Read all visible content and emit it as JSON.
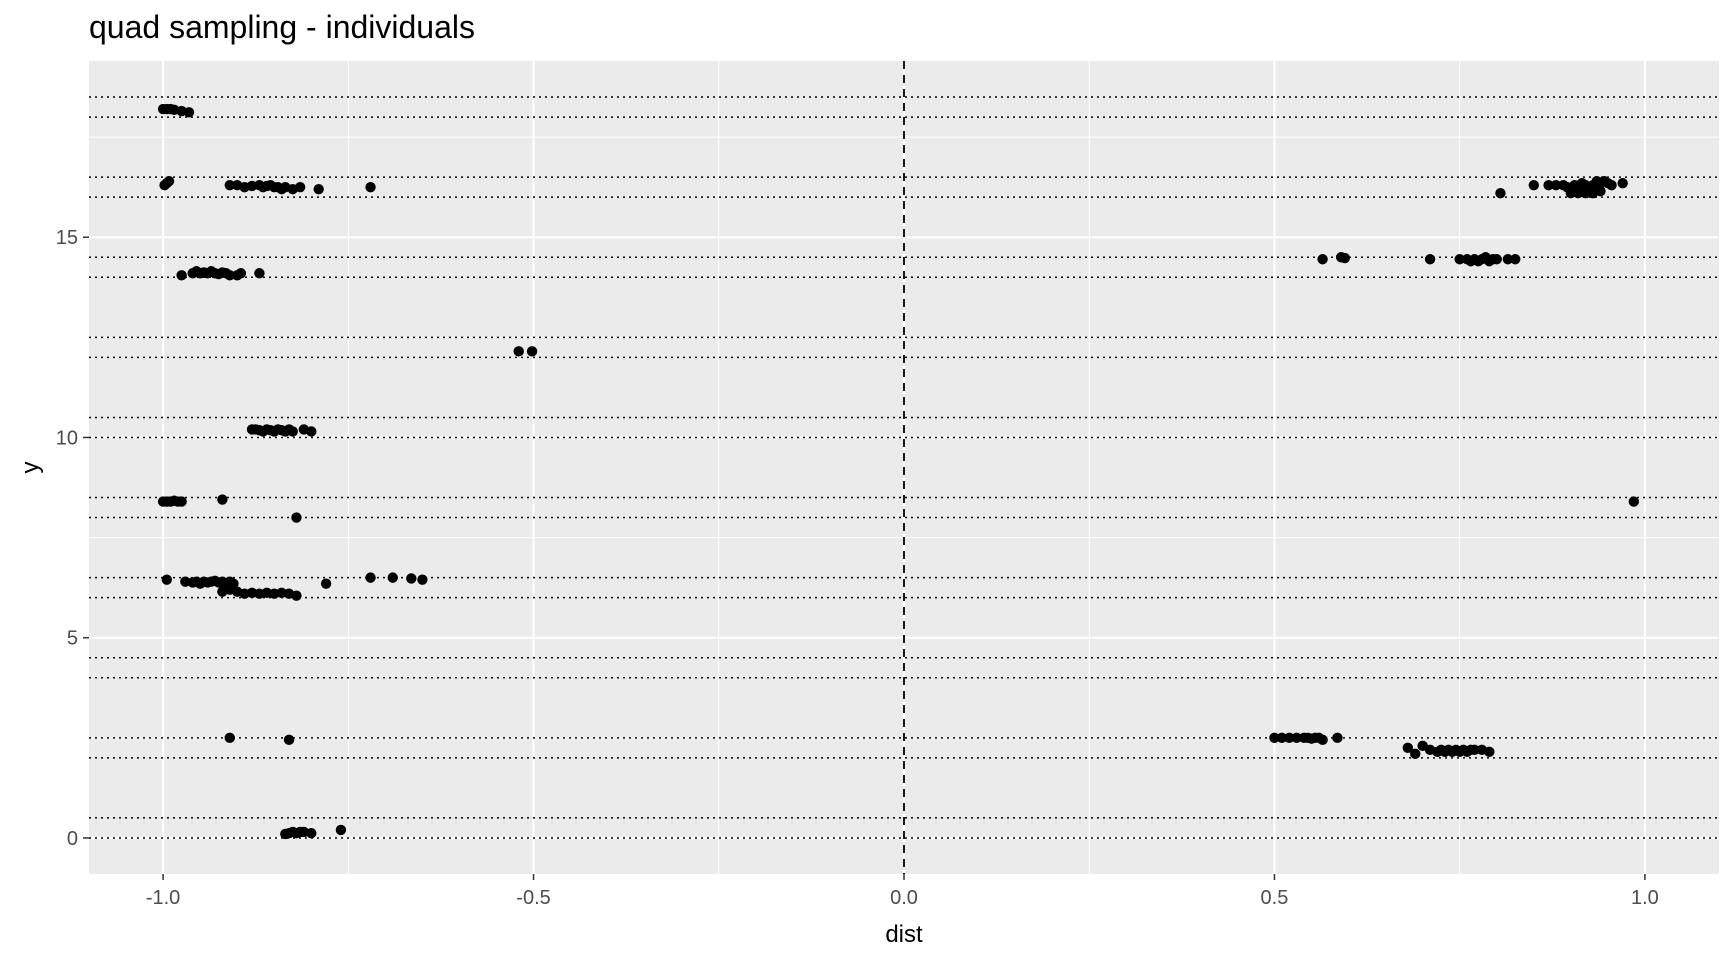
{
  "chart_data": {
    "type": "scatter",
    "title": "quad sampling - individuals",
    "xlabel": "dist",
    "ylabel": "y",
    "xlim": [
      -1.1,
      1.1
    ],
    "ylim": [
      -0.9,
      19.4
    ],
    "x_ticks": [
      -1.0,
      -0.5,
      0.0,
      0.5,
      1.0
    ],
    "x_tick_labels": [
      "-1.0",
      "-0.5",
      "0.0",
      "0.5",
      "1.0"
    ],
    "y_ticks": [
      0,
      5,
      10,
      15
    ],
    "y_tick_labels": [
      "0",
      "5",
      "10",
      "15"
    ],
    "grid": true,
    "background_color": "#ebebeb",
    "gridline_color": "#ffffff",
    "point_color": "#000000",
    "reference_lines": {
      "vertical_dashed_x": [
        0.0
      ],
      "horizontal_dotted_y": [
        0,
        0.5,
        2,
        2.5,
        4,
        4.5,
        6,
        6.5,
        8,
        8.5,
        10,
        10.5,
        12,
        12.5,
        14,
        14.5,
        16,
        16.5,
        18,
        18.5
      ]
    },
    "points": [
      {
        "x": -1.0,
        "y": 18.2
      },
      {
        "x": -0.995,
        "y": 18.2
      },
      {
        "x": -0.99,
        "y": 18.2
      },
      {
        "x": -0.985,
        "y": 18.18
      },
      {
        "x": -0.975,
        "y": 18.15
      },
      {
        "x": -0.965,
        "y": 18.12
      },
      {
        "x": -0.998,
        "y": 16.3
      },
      {
        "x": -0.995,
        "y": 16.35
      },
      {
        "x": -0.992,
        "y": 16.4
      },
      {
        "x": -0.91,
        "y": 16.3
      },
      {
        "x": -0.9,
        "y": 16.3
      },
      {
        "x": -0.89,
        "y": 16.25
      },
      {
        "x": -0.88,
        "y": 16.28
      },
      {
        "x": -0.87,
        "y": 16.3
      },
      {
        "x": -0.865,
        "y": 16.25
      },
      {
        "x": -0.86,
        "y": 16.28
      },
      {
        "x": -0.855,
        "y": 16.3
      },
      {
        "x": -0.85,
        "y": 16.25
      },
      {
        "x": -0.845,
        "y": 16.25
      },
      {
        "x": -0.84,
        "y": 16.2
      },
      {
        "x": -0.835,
        "y": 16.25
      },
      {
        "x": -0.825,
        "y": 16.2
      },
      {
        "x": -0.815,
        "y": 16.25
      },
      {
        "x": -0.79,
        "y": 16.2
      },
      {
        "x": -0.72,
        "y": 16.25
      },
      {
        "x": -0.975,
        "y": 14.05
      },
      {
        "x": -0.96,
        "y": 14.1
      },
      {
        "x": -0.955,
        "y": 14.15
      },
      {
        "x": -0.95,
        "y": 14.1
      },
      {
        "x": -0.945,
        "y": 14.12
      },
      {
        "x": -0.94,
        "y": 14.1
      },
      {
        "x": -0.935,
        "y": 14.15
      },
      {
        "x": -0.93,
        "y": 14.1
      },
      {
        "x": -0.925,
        "y": 14.08
      },
      {
        "x": -0.92,
        "y": 14.12
      },
      {
        "x": -0.915,
        "y": 14.1
      },
      {
        "x": -0.91,
        "y": 14.05
      },
      {
        "x": -0.9,
        "y": 14.05
      },
      {
        "x": -0.895,
        "y": 14.1
      },
      {
        "x": -0.87,
        "y": 14.1
      },
      {
        "x": -0.52,
        "y": 12.15
      },
      {
        "x": -0.502,
        "y": 12.15
      },
      {
        "x": -0.88,
        "y": 10.2
      },
      {
        "x": -0.875,
        "y": 10.2
      },
      {
        "x": -0.87,
        "y": 10.18
      },
      {
        "x": -0.865,
        "y": 10.15
      },
      {
        "x": -0.86,
        "y": 10.2
      },
      {
        "x": -0.855,
        "y": 10.18
      },
      {
        "x": -0.85,
        "y": 10.15
      },
      {
        "x": -0.845,
        "y": 10.2
      },
      {
        "x": -0.84,
        "y": 10.18
      },
      {
        "x": -0.835,
        "y": 10.15
      },
      {
        "x": -0.83,
        "y": 10.2
      },
      {
        "x": -0.825,
        "y": 10.15
      },
      {
        "x": -0.81,
        "y": 10.2
      },
      {
        "x": -0.8,
        "y": 10.15
      },
      {
        "x": -1.0,
        "y": 8.4
      },
      {
        "x": -0.995,
        "y": 8.4
      },
      {
        "x": -0.99,
        "y": 8.4
      },
      {
        "x": -0.985,
        "y": 8.42
      },
      {
        "x": -0.98,
        "y": 8.4
      },
      {
        "x": -0.975,
        "y": 8.4
      },
      {
        "x": -0.92,
        "y": 8.45
      },
      {
        "x": -0.82,
        "y": 8.0
      },
      {
        "x": -0.995,
        "y": 6.45
      },
      {
        "x": -0.97,
        "y": 6.4
      },
      {
        "x": -0.96,
        "y": 6.38
      },
      {
        "x": -0.955,
        "y": 6.4
      },
      {
        "x": -0.95,
        "y": 6.35
      },
      {
        "x": -0.945,
        "y": 6.4
      },
      {
        "x": -0.94,
        "y": 6.38
      },
      {
        "x": -0.935,
        "y": 6.4
      },
      {
        "x": -0.93,
        "y": 6.42
      },
      {
        "x": -0.925,
        "y": 6.38
      },
      {
        "x": -0.92,
        "y": 6.4
      },
      {
        "x": -0.915,
        "y": 6.35
      },
      {
        "x": -0.91,
        "y": 6.4
      },
      {
        "x": -0.905,
        "y": 6.35
      },
      {
        "x": -0.92,
        "y": 6.15
      },
      {
        "x": -0.91,
        "y": 6.2
      },
      {
        "x": -0.9,
        "y": 6.15
      },
      {
        "x": -0.89,
        "y": 6.1
      },
      {
        "x": -0.88,
        "y": 6.12
      },
      {
        "x": -0.87,
        "y": 6.1
      },
      {
        "x": -0.86,
        "y": 6.12
      },
      {
        "x": -0.85,
        "y": 6.1
      },
      {
        "x": -0.84,
        "y": 6.12
      },
      {
        "x": -0.83,
        "y": 6.1
      },
      {
        "x": -0.82,
        "y": 6.05
      },
      {
        "x": -0.78,
        "y": 6.35
      },
      {
        "x": -0.72,
        "y": 6.5
      },
      {
        "x": -0.69,
        "y": 6.5
      },
      {
        "x": -0.665,
        "y": 6.48
      },
      {
        "x": -0.65,
        "y": 6.45
      },
      {
        "x": -0.91,
        "y": 2.5
      },
      {
        "x": -0.83,
        "y": 2.45
      },
      {
        "x": -0.835,
        "y": 0.1
      },
      {
        "x": -0.83,
        "y": 0.12
      },
      {
        "x": -0.825,
        "y": 0.15
      },
      {
        "x": -0.82,
        "y": 0.12
      },
      {
        "x": -0.815,
        "y": 0.15
      },
      {
        "x": -0.81,
        "y": 0.15
      },
      {
        "x": -0.8,
        "y": 0.12
      },
      {
        "x": -0.76,
        "y": 0.2
      },
      {
        "x": 0.5,
        "y": 2.5
      },
      {
        "x": 0.51,
        "y": 2.5
      },
      {
        "x": 0.52,
        "y": 2.5
      },
      {
        "x": 0.53,
        "y": 2.5
      },
      {
        "x": 0.54,
        "y": 2.5
      },
      {
        "x": 0.545,
        "y": 2.5
      },
      {
        "x": 0.55,
        "y": 2.48
      },
      {
        "x": 0.555,
        "y": 2.5
      },
      {
        "x": 0.56,
        "y": 2.5
      },
      {
        "x": 0.565,
        "y": 2.45
      },
      {
        "x": 0.585,
        "y": 2.5
      },
      {
        "x": 0.68,
        "y": 2.25
      },
      {
        "x": 0.69,
        "y": 2.1
      },
      {
        "x": 0.7,
        "y": 2.3
      },
      {
        "x": 0.71,
        "y": 2.2
      },
      {
        "x": 0.72,
        "y": 2.15
      },
      {
        "x": 0.725,
        "y": 2.2
      },
      {
        "x": 0.73,
        "y": 2.15
      },
      {
        "x": 0.735,
        "y": 2.2
      },
      {
        "x": 0.74,
        "y": 2.15
      },
      {
        "x": 0.745,
        "y": 2.2
      },
      {
        "x": 0.75,
        "y": 2.15
      },
      {
        "x": 0.755,
        "y": 2.2
      },
      {
        "x": 0.76,
        "y": 2.15
      },
      {
        "x": 0.765,
        "y": 2.2
      },
      {
        "x": 0.77,
        "y": 2.2
      },
      {
        "x": 0.78,
        "y": 2.2
      },
      {
        "x": 0.79,
        "y": 2.15
      },
      {
        "x": 0.985,
        "y": 8.4
      },
      {
        "x": 0.565,
        "y": 14.45
      },
      {
        "x": 0.59,
        "y": 14.5
      },
      {
        "x": 0.595,
        "y": 14.48
      },
      {
        "x": 0.71,
        "y": 14.45
      },
      {
        "x": 0.75,
        "y": 14.45
      },
      {
        "x": 0.76,
        "y": 14.45
      },
      {
        "x": 0.765,
        "y": 14.4
      },
      {
        "x": 0.77,
        "y": 14.45
      },
      {
        "x": 0.775,
        "y": 14.4
      },
      {
        "x": 0.78,
        "y": 14.45
      },
      {
        "x": 0.785,
        "y": 14.5
      },
      {
        "x": 0.79,
        "y": 14.4
      },
      {
        "x": 0.795,
        "y": 14.45
      },
      {
        "x": 0.8,
        "y": 14.45
      },
      {
        "x": 0.815,
        "y": 14.45
      },
      {
        "x": 0.825,
        "y": 14.45
      },
      {
        "x": 0.805,
        "y": 16.1
      },
      {
        "x": 0.85,
        "y": 16.3
      },
      {
        "x": 0.87,
        "y": 16.3
      },
      {
        "x": 0.88,
        "y": 16.3
      },
      {
        "x": 0.89,
        "y": 16.3
      },
      {
        "x": 0.895,
        "y": 16.25
      },
      {
        "x": 0.9,
        "y": 16.2
      },
      {
        "x": 0.905,
        "y": 16.3
      },
      {
        "x": 0.91,
        "y": 16.25
      },
      {
        "x": 0.915,
        "y": 16.35
      },
      {
        "x": 0.92,
        "y": 16.3
      },
      {
        "x": 0.925,
        "y": 16.2
      },
      {
        "x": 0.93,
        "y": 16.3
      },
      {
        "x": 0.935,
        "y": 16.4
      },
      {
        "x": 0.94,
        "y": 16.35
      },
      {
        "x": 0.945,
        "y": 16.4
      },
      {
        "x": 0.95,
        "y": 16.35
      },
      {
        "x": 0.955,
        "y": 16.3
      },
      {
        "x": 0.97,
        "y": 16.35
      },
      {
        "x": 0.9,
        "y": 16.1
      },
      {
        "x": 0.91,
        "y": 16.1
      },
      {
        "x": 0.92,
        "y": 16.1
      },
      {
        "x": 0.93,
        "y": 16.1
      },
      {
        "x": 0.94,
        "y": 16.15
      }
    ]
  }
}
